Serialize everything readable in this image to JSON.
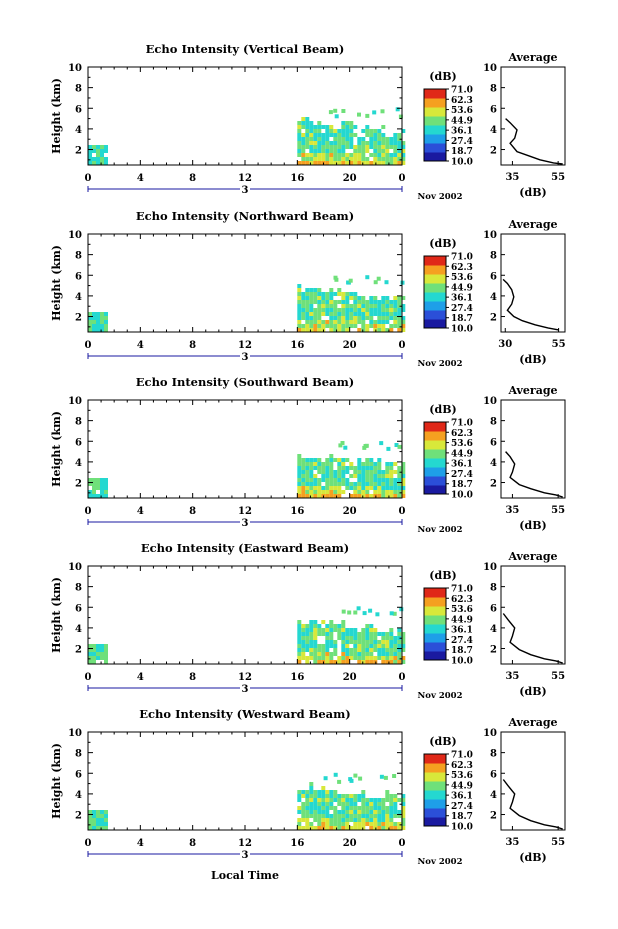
{
  "figure": {
    "x_axis_label": "Local Time",
    "date_label": "Nov 2002",
    "day_label": "3",
    "colorbar_title": "(dB)",
    "colorbar_ticks": [
      "71.0",
      "62.3",
      "53.6",
      "44.9",
      "36.1",
      "27.4",
      "18.7",
      "10.0"
    ],
    "colormap": [
      "#1a1aa0",
      "#2b4fd8",
      "#1e9fe8",
      "#24d8d0",
      "#6fe07a",
      "#d8e83a",
      "#f5a020",
      "#e02818"
    ],
    "avg_title": "Average",
    "avg_xlabel": "(dB)"
  },
  "chart_data": [
    {
      "type": "heatmap",
      "title": "Echo Intensity (Vertical Beam)",
      "xlabel": "Local Time",
      "ylabel": "Height (km)",
      "x_ticks": [
        "0",
        "4",
        "8",
        "12",
        "16",
        "20",
        "0"
      ],
      "xlim": [
        0,
        24
      ],
      "y_ticks": [
        "2",
        "4",
        "6",
        "8",
        "10"
      ],
      "ylim": [
        0.5,
        10
      ],
      "colorbar_range": [
        10.0,
        71.0
      ],
      "echo_regions": [
        {
          "t_start": 0.0,
          "t_end": 1.3,
          "h_top": 2.5,
          "intensity": "low-moderate (27–40 dB)"
        },
        {
          "t_start": 16.0,
          "t_end": 24.0,
          "h_top": 5.0,
          "intensity": "moderate-high, strongest near surface (up to ~62 dB)"
        }
      ],
      "profile": {
        "title": "Average",
        "xlabel": "(dB)",
        "x_ticks": [
          "35",
          "55"
        ],
        "xlim": [
          30,
          58
        ],
        "y_ticks": [
          "2",
          "4",
          "6",
          "8",
          "10"
        ],
        "ylim": [
          0.5,
          10
        ],
        "points": [
          [
            32,
            5.0
          ],
          [
            34,
            4.6
          ],
          [
            37,
            3.9
          ],
          [
            36,
            3.1
          ],
          [
            34,
            2.6
          ],
          [
            37,
            1.8
          ],
          [
            42,
            1.4
          ],
          [
            47,
            1.0
          ],
          [
            53,
            0.7
          ],
          [
            57,
            0.6
          ]
        ]
      }
    },
    {
      "type": "heatmap",
      "title": "Echo Intensity (Northward Beam)",
      "xlabel": "Local Time",
      "ylabel": "Height (km)",
      "x_ticks": [
        "0",
        "4",
        "8",
        "12",
        "16",
        "20",
        "0"
      ],
      "xlim": [
        0,
        24
      ],
      "y_ticks": [
        "2",
        "4",
        "6",
        "8",
        "10"
      ],
      "ylim": [
        0.5,
        10
      ],
      "colorbar_range": [
        10.0,
        71.0
      ],
      "echo_regions": [
        {
          "t_start": 0.0,
          "t_end": 1.3,
          "h_top": 2.6,
          "intensity": "low-moderate (27–40 dB)"
        },
        {
          "t_start": 16.0,
          "t_end": 24.0,
          "h_top": 5.0,
          "intensity": "moderate-high, strongest near surface (up to ~62 dB)"
        }
      ],
      "profile": {
        "title": "Average",
        "xlabel": "(dB)",
        "x_ticks": [
          "30",
          "55"
        ],
        "xlim": [
          28,
          58
        ],
        "y_ticks": [
          "2",
          "4",
          "6",
          "8",
          "10"
        ],
        "ylim": [
          0.5,
          10
        ],
        "points": [
          [
            29,
            5.6
          ],
          [
            31,
            5.2
          ],
          [
            33,
            4.6
          ],
          [
            34,
            3.9
          ],
          [
            33,
            3.2
          ],
          [
            31,
            2.6
          ],
          [
            34,
            2.0
          ],
          [
            38,
            1.6
          ],
          [
            44,
            1.2
          ],
          [
            50,
            0.9
          ],
          [
            55,
            0.7
          ]
        ]
      }
    },
    {
      "type": "heatmap",
      "title": "Echo Intensity (Southward Beam)",
      "xlabel": "Local Time",
      "ylabel": "Height (km)",
      "x_ticks": [
        "0",
        "4",
        "8",
        "12",
        "16",
        "20",
        "0"
      ],
      "xlim": [
        0,
        24
      ],
      "y_ticks": [
        "2",
        "4",
        "6",
        "8",
        "10"
      ],
      "ylim": [
        0.5,
        10
      ],
      "colorbar_range": [
        10.0,
        71.0
      ],
      "echo_regions": [
        {
          "t_start": 0.0,
          "t_end": 1.3,
          "h_top": 2.6,
          "intensity": "low-moderate (27–40 dB)"
        },
        {
          "t_start": 16.0,
          "t_end": 24.0,
          "h_top": 5.0,
          "intensity": "moderate-high, strongest near surface (up to ~62 dB)"
        }
      ],
      "profile": {
        "title": "Average",
        "xlabel": "(dB)",
        "x_ticks": [
          "35",
          "55"
        ],
        "xlim": [
          30,
          58
        ],
        "y_ticks": [
          "2",
          "4",
          "6",
          "8",
          "10"
        ],
        "ylim": [
          0.5,
          10
        ],
        "points": [
          [
            32,
            5.0
          ],
          [
            34,
            4.5
          ],
          [
            36,
            3.8
          ],
          [
            35,
            3.0
          ],
          [
            34,
            2.5
          ],
          [
            38,
            1.8
          ],
          [
            43,
            1.4
          ],
          [
            49,
            1.0
          ],
          [
            54,
            0.8
          ],
          [
            57,
            0.6
          ]
        ]
      }
    },
    {
      "type": "heatmap",
      "title": "Echo Intensity (Eastward Beam)",
      "xlabel": "Local Time",
      "ylabel": "Height (km)",
      "x_ticks": [
        "0",
        "4",
        "8",
        "12",
        "16",
        "20",
        "0"
      ],
      "xlim": [
        0,
        24
      ],
      "y_ticks": [
        "2",
        "4",
        "6",
        "8",
        "10"
      ],
      "ylim": [
        0.5,
        10
      ],
      "colorbar_range": [
        10.0,
        71.0
      ],
      "echo_regions": [
        {
          "t_start": 0.0,
          "t_end": 1.3,
          "h_top": 2.6,
          "intensity": "low-moderate (27–40 dB)"
        },
        {
          "t_start": 16.0,
          "t_end": 24.0,
          "h_top": 5.0,
          "intensity": "moderate-high, strongest near surface (up to ~62 dB)"
        }
      ],
      "profile": {
        "title": "Average",
        "xlabel": "(dB)",
        "x_ticks": [
          "35",
          "55"
        ],
        "xlim": [
          30,
          58
        ],
        "y_ticks": [
          "2",
          "4",
          "6",
          "8",
          "10"
        ],
        "ylim": [
          0.5,
          10
        ],
        "points": [
          [
            31,
            5.4
          ],
          [
            33,
            4.8
          ],
          [
            36,
            4.0
          ],
          [
            35,
            3.2
          ],
          [
            34,
            2.6
          ],
          [
            38,
            1.9
          ],
          [
            43,
            1.4
          ],
          [
            49,
            1.0
          ],
          [
            54,
            0.8
          ],
          [
            57,
            0.6
          ]
        ]
      }
    },
    {
      "type": "heatmap",
      "title": "Echo Intensity (Westward Beam)",
      "xlabel": "Local Time",
      "ylabel": "Height (km)",
      "x_ticks": [
        "0",
        "4",
        "8",
        "12",
        "16",
        "20",
        "0"
      ],
      "xlim": [
        0,
        24
      ],
      "y_ticks": [
        "2",
        "4",
        "6",
        "8",
        "10"
      ],
      "ylim": [
        0.5,
        10
      ],
      "colorbar_range": [
        10.0,
        71.0
      ],
      "echo_regions": [
        {
          "t_start": 0.0,
          "t_end": 1.3,
          "h_top": 2.6,
          "intensity": "low-moderate (27–40 dB)"
        },
        {
          "t_start": 16.0,
          "t_end": 24.0,
          "h_top": 5.0,
          "intensity": "moderate-high, strongest near surface (up to ~62 dB)"
        }
      ],
      "profile": {
        "title": "Average",
        "xlabel": "(dB)",
        "x_ticks": [
          "35",
          "55"
        ],
        "xlim": [
          30,
          58
        ],
        "y_ticks": [
          "2",
          "4",
          "6",
          "8",
          "10"
        ],
        "ylim": [
          0.5,
          10
        ],
        "points": [
          [
            31,
            5.4
          ],
          [
            33,
            4.8
          ],
          [
            36,
            4.0
          ],
          [
            35,
            3.2
          ],
          [
            34,
            2.6
          ],
          [
            38,
            1.9
          ],
          [
            43,
            1.4
          ],
          [
            49,
            1.0
          ],
          [
            54,
            0.8
          ],
          [
            57,
            0.6
          ]
        ]
      }
    }
  ]
}
